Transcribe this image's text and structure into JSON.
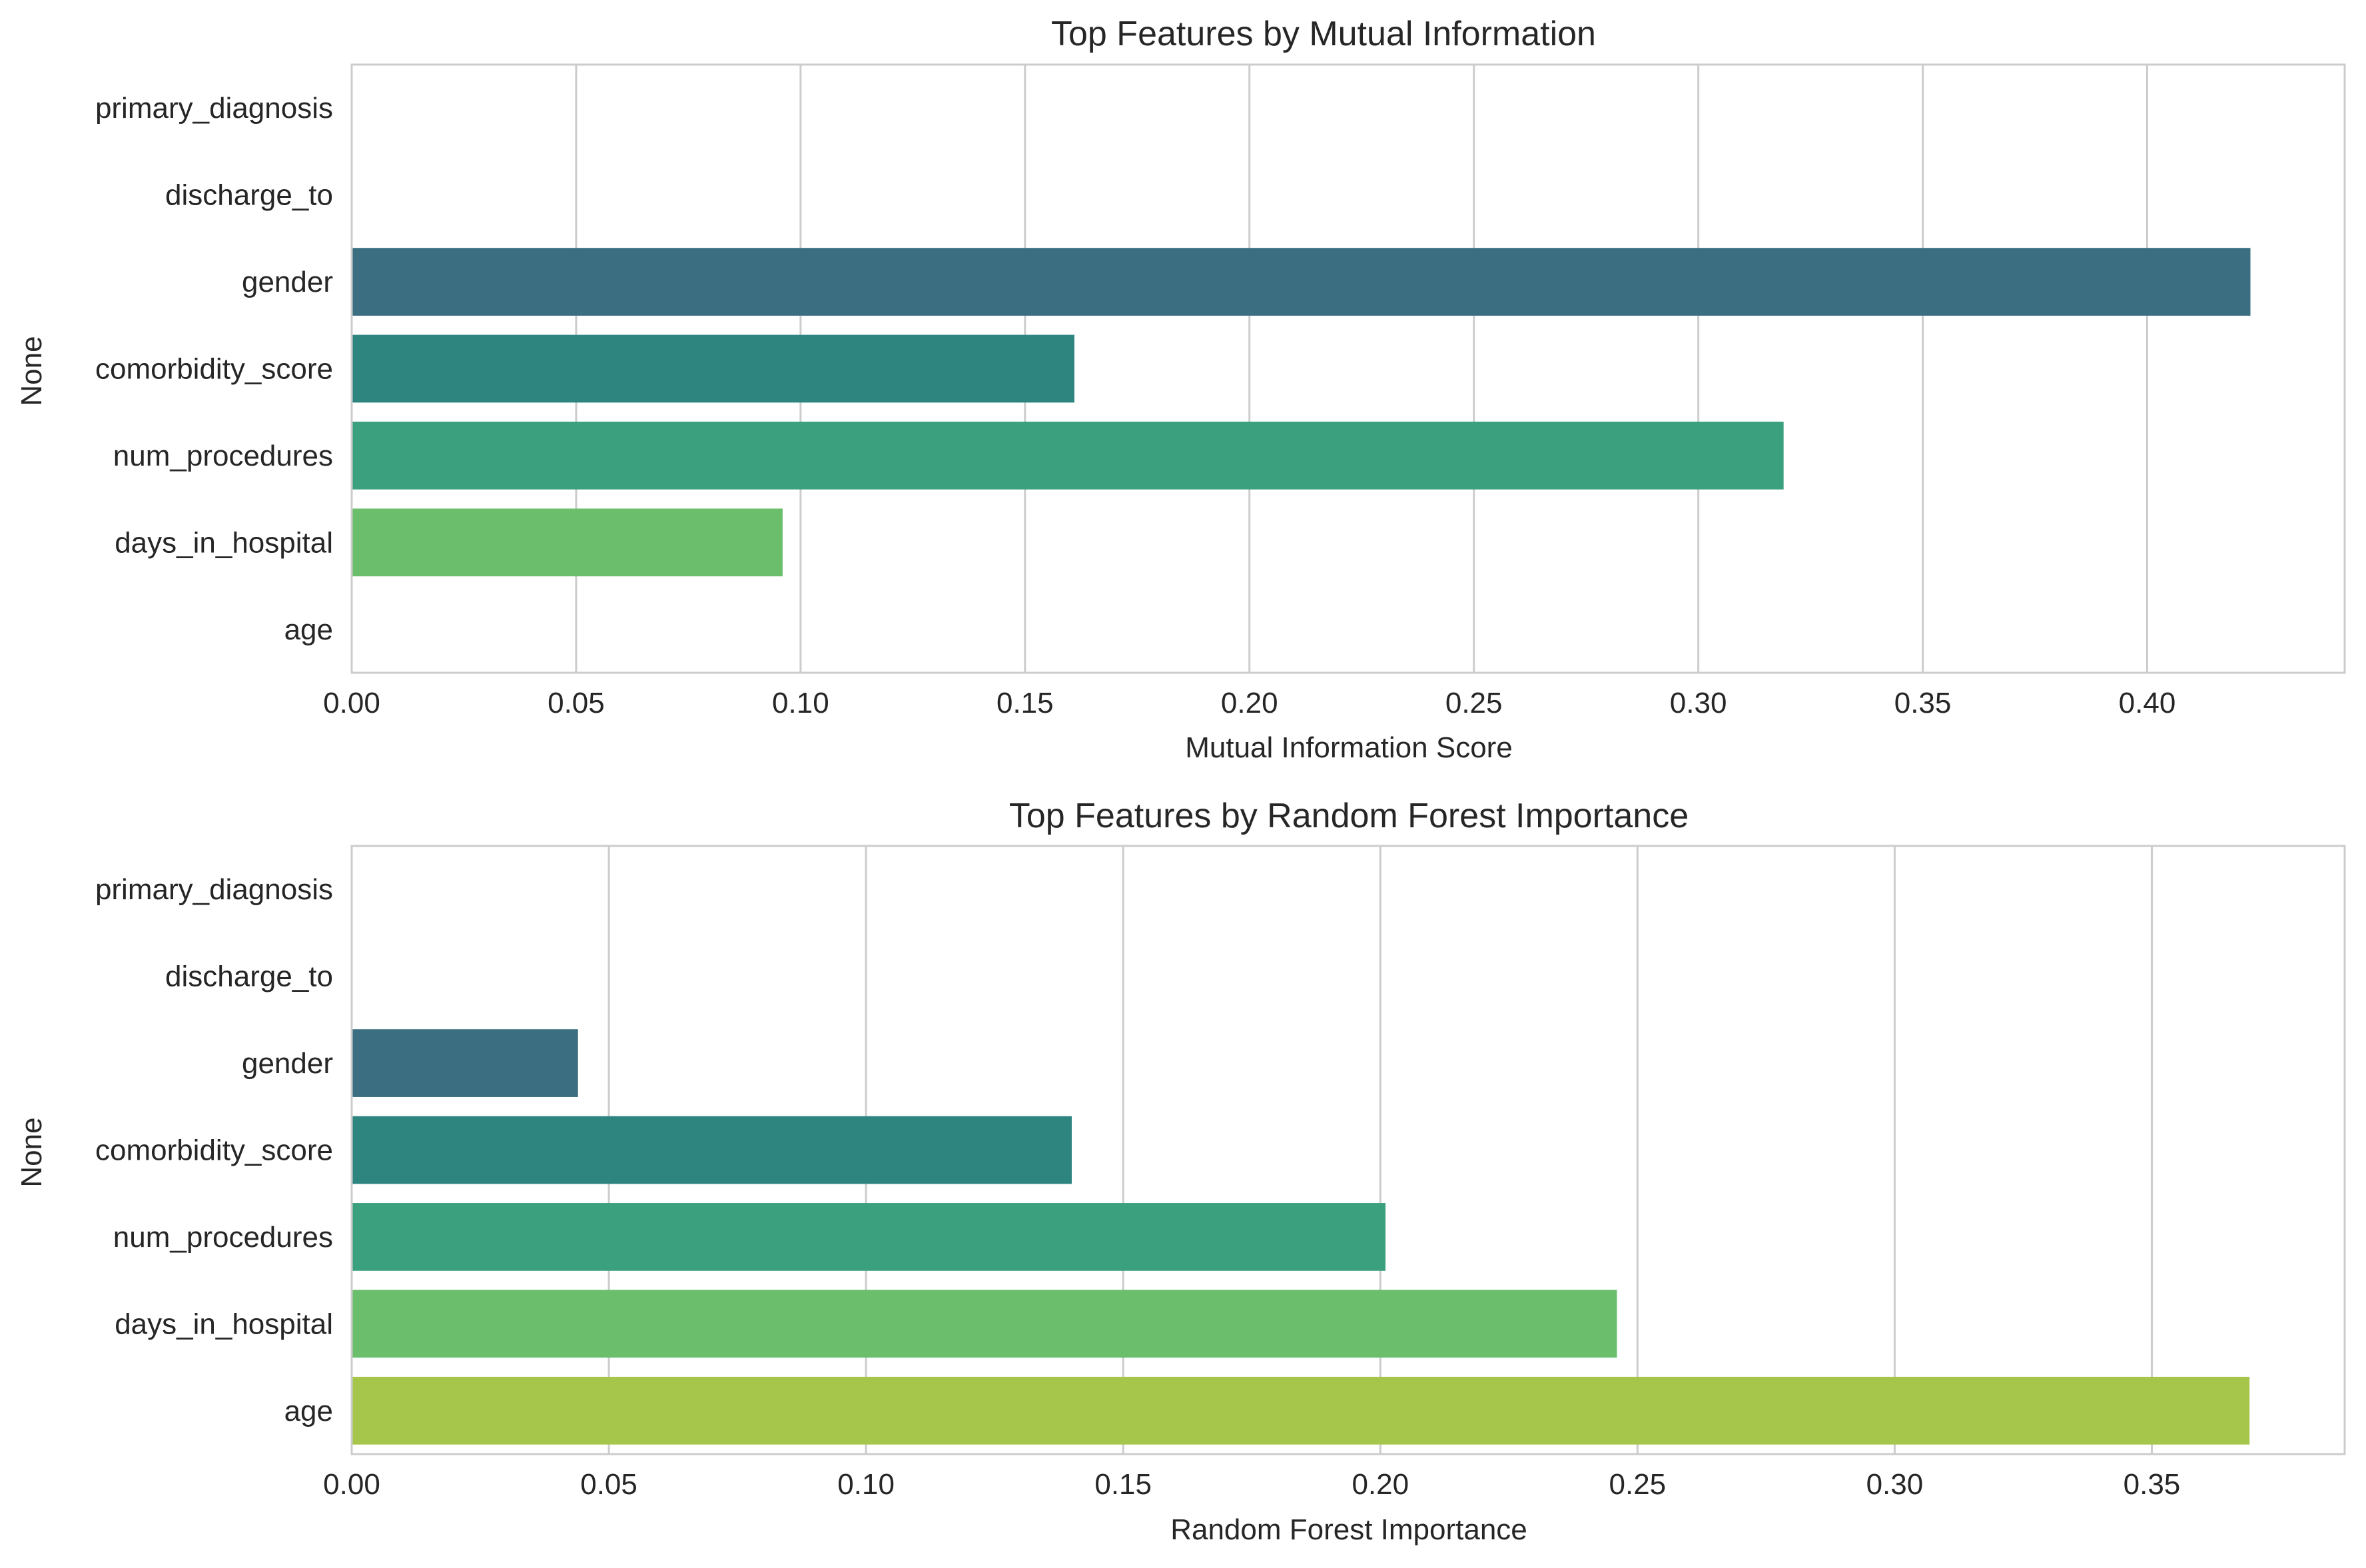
{
  "figure": {
    "background": "#ffffff",
    "grid_color": "#cccccc",
    "axis_color": "#cccccc",
    "text_color": "#262626"
  },
  "chart_data": [
    {
      "type": "bar",
      "orientation": "horizontal",
      "title": "Top Features by Mutual Information",
      "xlabel": "Mutual Information Score",
      "ylabel": "None",
      "categories": [
        "primary_diagnosis",
        "discharge_to",
        "gender",
        "comorbidity_score",
        "num_procedures",
        "days_in_hospital",
        "age"
      ],
      "values": [
        0,
        0,
        0.423,
        0.161,
        0.319,
        0.096,
        0
      ],
      "colors": [
        "#482878",
        "#3e4989",
        "#3b6e81",
        "#2e8580",
        "#3aa07d",
        "#6bbe6c",
        "#a5c64a"
      ],
      "xlim": [
        0,
        0.444
      ],
      "xticks": [
        "0.00",
        "0.05",
        "0.10",
        "0.15",
        "0.20",
        "0.25",
        "0.30",
        "0.35",
        "0.40"
      ],
      "grid": "vertical"
    },
    {
      "type": "bar",
      "orientation": "horizontal",
      "title": "Top Features by Random Forest Importance",
      "xlabel": "Random Forest Importance",
      "ylabel": "None",
      "categories": [
        "primary_diagnosis",
        "discharge_to",
        "gender",
        "comorbidity_score",
        "num_procedures",
        "days_in_hospital",
        "age"
      ],
      "values": [
        0,
        0,
        0.044,
        0.14,
        0.201,
        0.246,
        0.369
      ],
      "colors": [
        "#482878",
        "#3e4989",
        "#3b6e81",
        "#2e8580",
        "#3aa07d",
        "#6bbe6c",
        "#a5c64a"
      ],
      "xlim": [
        0,
        0.3875
      ],
      "xticks": [
        "0.00",
        "0.05",
        "0.10",
        "0.15",
        "0.20",
        "0.25",
        "0.30",
        "0.35"
      ],
      "grid": "vertical"
    }
  ]
}
